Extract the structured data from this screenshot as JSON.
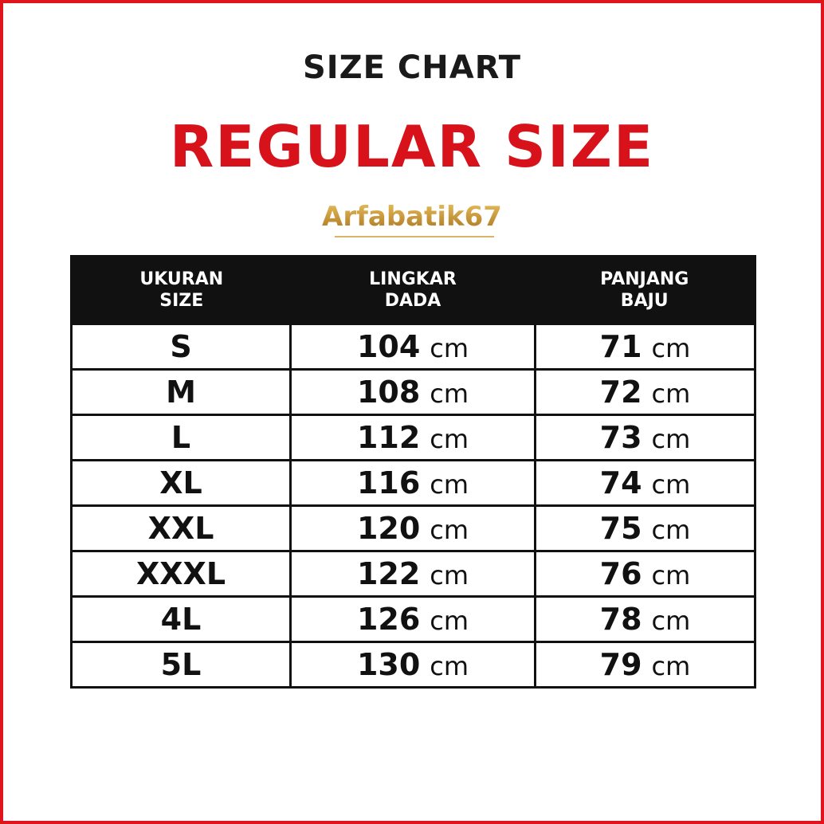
{
  "title": "SIZE CHART",
  "subtitle": "REGULAR SIZE",
  "logo": "Arfabatik67",
  "colors": {
    "border": "#e0141c",
    "subtitle": "#d7121a",
    "header_bg": "#111111"
  },
  "table": {
    "headers": [
      {
        "line1": "UKURAN",
        "line2": "SIZE"
      },
      {
        "line1": "LINGKAR",
        "line2": "DADA"
      },
      {
        "line1": "PANJANG",
        "line2": "BAJU"
      }
    ],
    "unit": "cm",
    "rows": [
      {
        "size": "S",
        "chest": "104",
        "length": "71"
      },
      {
        "size": "M",
        "chest": "108",
        "length": "72"
      },
      {
        "size": "L",
        "chest": "112",
        "length": "73"
      },
      {
        "size": "XL",
        "chest": "116",
        "length": "74"
      },
      {
        "size": "XXL",
        "chest": "120",
        "length": "75"
      },
      {
        "size": "XXXL",
        "chest": "122",
        "length": "76"
      },
      {
        "size": "4L",
        "chest": "126",
        "length": "78"
      },
      {
        "size": "5L",
        "chest": "130",
        "length": "79"
      }
    ]
  }
}
